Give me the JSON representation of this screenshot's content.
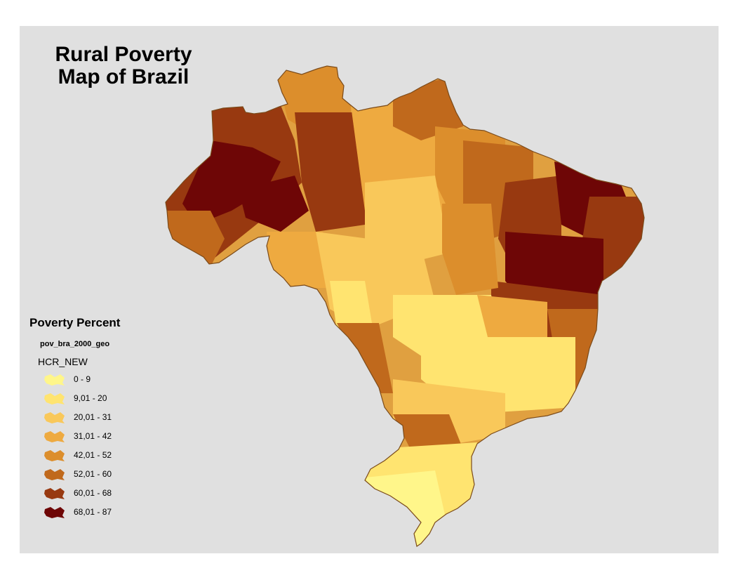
{
  "title": {
    "line1": "Rural Poverty",
    "line2": "Map of Brazil"
  },
  "legend": {
    "title": "Poverty Percent",
    "layer": "pov_bra_2000_geo",
    "field": "HCR_NEW",
    "classes": [
      {
        "label": "0 - 9",
        "color": "#fff68a"
      },
      {
        "label": "9,01 - 20",
        "color": "#ffe470"
      },
      {
        "label": "20,01 - 31",
        "color": "#f9c85a"
      },
      {
        "label": "31,01 - 42",
        "color": "#eeaa40"
      },
      {
        "label": "42,01 - 52",
        "color": "#dc8e2c"
      },
      {
        "label": "52,01 - 60",
        "color": "#c0691c"
      },
      {
        "label": "60,01 - 68",
        "color": "#983910"
      },
      {
        "label": "68,01 - 87",
        "color": "#6e0606"
      }
    ]
  },
  "colors": {
    "background": "#e0e0e0",
    "map_outline": "#7a4a1a"
  }
}
